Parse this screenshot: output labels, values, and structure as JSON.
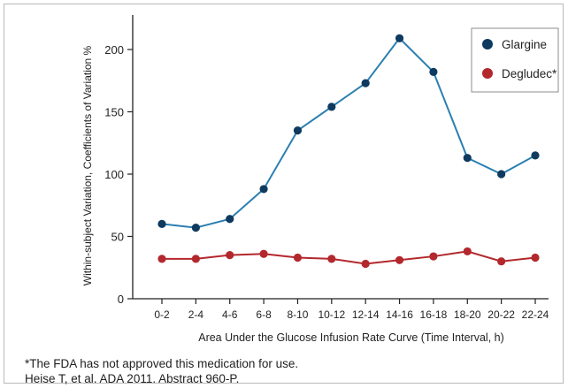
{
  "chart_data": {
    "type": "line",
    "title": "",
    "xlabel": "Area Under the Glucose Infusion Rate Curve (Time Interval, h)",
    "ylabel": "Within-subject Variation, Coefficients of Variation %",
    "categories": [
      "0-2",
      "2-4",
      "4-6",
      "6-8",
      "8-10",
      "10-12",
      "12-14",
      "14-16",
      "16-18",
      "18-20",
      "20-22",
      "22-24"
    ],
    "ylim": [
      0,
      225
    ],
    "yticks": [
      0,
      50,
      100,
      150,
      200
    ],
    "grid": false,
    "legend_position": "top-right",
    "series": [
      {
        "name": "Glargine",
        "color": "#0f3a5f",
        "line_color": "#2a7fb0",
        "values": [
          60,
          57,
          64,
          88,
          135,
          154,
          173,
          209,
          182,
          113,
          100,
          115
        ]
      },
      {
        "name": "Degludec*",
        "color": "#b3282d",
        "line_color": "#b3282d",
        "values": [
          32,
          32,
          35,
          36,
          33,
          32,
          28,
          31,
          34,
          38,
          30,
          33
        ]
      }
    ]
  },
  "notes": {
    "footnote": "*The FDA has not approved this medication for use.",
    "citation": "Heise T, et al. ADA 2011. Abstract 960-P."
  }
}
